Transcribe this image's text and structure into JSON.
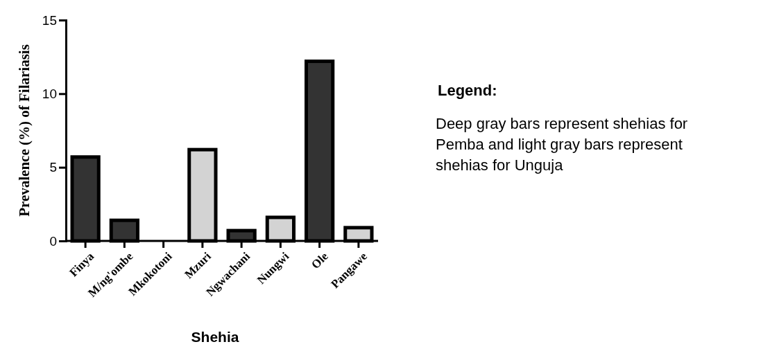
{
  "chart_data": {
    "type": "bar",
    "xlabel": "Shehia",
    "ylabel": "Prevalence (%) of Filariasis",
    "categories": [
      "Finya",
      "M/ng'ombe",
      "Mkokotoni",
      "Mzuri",
      "Ngwachani",
      "Nungwi",
      "Ole",
      "Pangawe"
    ],
    "values": [
      5.7,
      1.4,
      0,
      6.2,
      0.7,
      1.6,
      12.2,
      0.9
    ],
    "colors": [
      "#333333",
      "#333333",
      "#d3d3d3",
      "#d3d3d3",
      "#333333",
      "#d3d3d3",
      "#333333",
      "#d3d3d3"
    ],
    "ylim": [
      0,
      15
    ],
    "yticks": [
      0,
      5,
      10,
      15
    ],
    "grid": false,
    "annotations": [
      "Legend:",
      "Deep gray bars represent shehias for Pemba and light gray bars represent shehias for Unguja"
    ]
  }
}
